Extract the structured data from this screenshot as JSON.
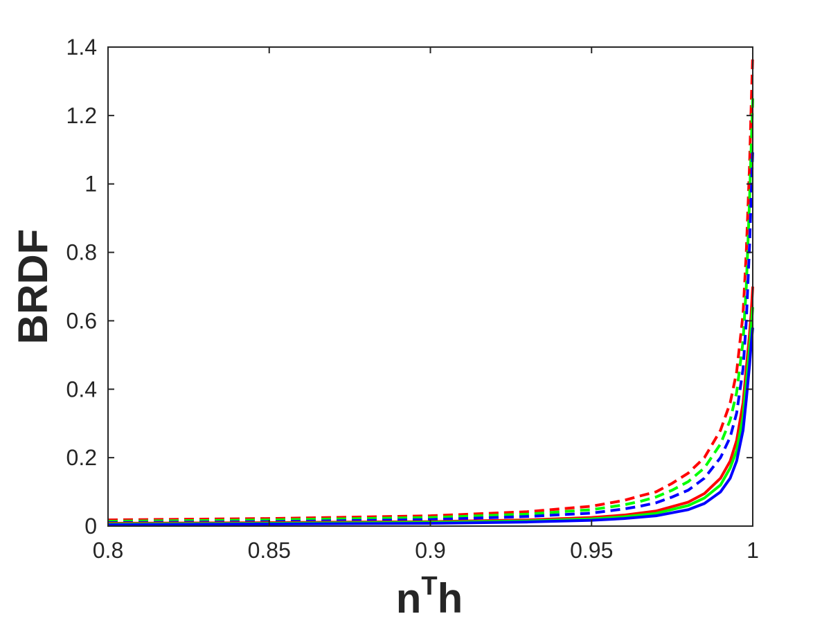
{
  "chart_data": {
    "type": "line",
    "title": "",
    "xlabel": "n",
    "xlabel_superscript": "T",
    "xlabel_suffix": "h",
    "ylabel": "BRDF",
    "xlim": [
      0.8,
      1.0
    ],
    "ylim": [
      0,
      1.4
    ],
    "xticks": [
      0.8,
      0.85,
      0.9,
      0.95,
      1.0
    ],
    "xtick_labels": [
      "0.8",
      "0.85",
      "0.9",
      "0.95",
      "1"
    ],
    "yticks": [
      0,
      0.2,
      0.4,
      0.6,
      0.8,
      1.0,
      1.2,
      1.4
    ],
    "ytick_labels": [
      "0",
      "0.2",
      "0.4",
      "0.6",
      "0.8",
      "1",
      "1.2",
      "1.4"
    ],
    "grid": false,
    "legend": "none",
    "series": [
      {
        "color": "#ff0000",
        "style": "solid",
        "x": [
          0.8,
          0.85,
          0.9,
          0.93,
          0.95,
          0.96,
          0.97,
          0.98,
          0.985,
          0.99,
          0.993,
          0.995,
          0.997,
          0.998,
          0.999,
          0.9995,
          1.0
        ],
        "y": [
          0.008,
          0.01,
          0.013,
          0.018,
          0.025,
          0.032,
          0.044,
          0.07,
          0.095,
          0.14,
          0.19,
          0.25,
          0.36,
          0.46,
          0.56,
          0.62,
          0.7
        ]
      },
      {
        "color": "#00ff00",
        "style": "solid",
        "x": [
          0.8,
          0.85,
          0.9,
          0.93,
          0.95,
          0.96,
          0.97,
          0.98,
          0.985,
          0.99,
          0.993,
          0.995,
          0.997,
          0.998,
          0.999,
          0.9995,
          1.0
        ],
        "y": [
          0.006,
          0.008,
          0.011,
          0.015,
          0.021,
          0.027,
          0.037,
          0.06,
          0.082,
          0.12,
          0.17,
          0.22,
          0.32,
          0.42,
          0.52,
          0.58,
          0.64
        ]
      },
      {
        "color": "#0000ff",
        "style": "solid",
        "x": [
          0.8,
          0.85,
          0.9,
          0.93,
          0.95,
          0.96,
          0.97,
          0.98,
          0.985,
          0.99,
          0.993,
          0.995,
          0.997,
          0.998,
          0.999,
          0.9995,
          1.0
        ],
        "y": [
          0.004,
          0.006,
          0.008,
          0.012,
          0.017,
          0.022,
          0.03,
          0.048,
          0.066,
          0.1,
          0.14,
          0.19,
          0.28,
          0.37,
          0.47,
          0.53,
          0.58
        ]
      },
      {
        "color": "#ff0000",
        "style": "dashed",
        "x": [
          0.8,
          0.85,
          0.9,
          0.93,
          0.95,
          0.96,
          0.965,
          0.97,
          0.975,
          0.98,
          0.985,
          0.99,
          0.993,
          0.995,
          0.997,
          0.998,
          0.999,
          0.9995,
          1.0
        ],
        "y": [
          0.018,
          0.022,
          0.03,
          0.042,
          0.058,
          0.075,
          0.088,
          0.1,
          0.125,
          0.155,
          0.2,
          0.28,
          0.36,
          0.45,
          0.62,
          0.8,
          1.05,
          1.22,
          1.38
        ]
      },
      {
        "color": "#00ff00",
        "style": "dashed",
        "x": [
          0.8,
          0.85,
          0.9,
          0.93,
          0.95,
          0.96,
          0.965,
          0.97,
          0.975,
          0.98,
          0.985,
          0.99,
          0.993,
          0.995,
          0.997,
          0.998,
          0.999,
          0.9995,
          1.0
        ],
        "y": [
          0.014,
          0.018,
          0.025,
          0.035,
          0.048,
          0.062,
          0.072,
          0.085,
          0.105,
          0.13,
          0.17,
          0.24,
          0.31,
          0.39,
          0.54,
          0.7,
          0.95,
          1.1,
          1.25
        ]
      },
      {
        "color": "#0000ff",
        "style": "dashed",
        "x": [
          0.8,
          0.85,
          0.9,
          0.93,
          0.95,
          0.96,
          0.965,
          0.97,
          0.975,
          0.98,
          0.985,
          0.99,
          0.993,
          0.995,
          0.997,
          0.998,
          0.999,
          0.9995,
          1.0
        ],
        "y": [
          0.01,
          0.013,
          0.019,
          0.028,
          0.038,
          0.05,
          0.058,
          0.068,
          0.085,
          0.105,
          0.14,
          0.2,
          0.26,
          0.33,
          0.46,
          0.6,
          0.82,
          0.96,
          1.1
        ]
      }
    ]
  }
}
